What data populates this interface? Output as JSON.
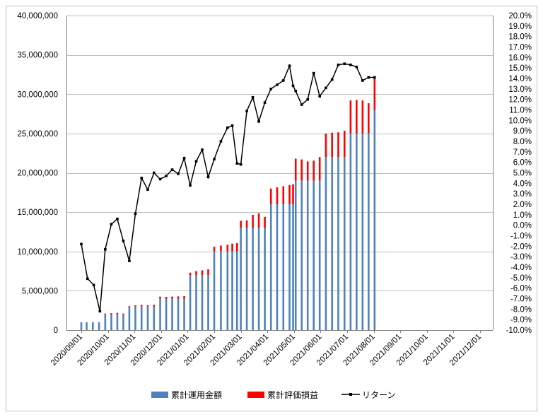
{
  "chart_data": {
    "type": "bar+line",
    "left_axis": {
      "min": 0,
      "max": 40000000,
      "step": 5000000,
      "tick_labels": [
        "0",
        "5,000,000",
        "10,000,000",
        "15,000,000",
        "20,000,000",
        "25,000,000",
        "30,000,000",
        "35,000,000",
        "40,000,000"
      ]
    },
    "right_axis": {
      "min": -10.0,
      "max": 20.0,
      "step": 1.0,
      "tick_labels": [
        "-10.0%",
        "-9.0%",
        "-8.0%",
        "-7.0%",
        "-6.0%",
        "-5.0%",
        "-4.0%",
        "-3.0%",
        "-2.0%",
        "-1.0%",
        "0.0%",
        "1.0%",
        "2.0%",
        "3.0%",
        "4.0%",
        "5.0%",
        "6.0%",
        "7.0%",
        "8.0%",
        "9.0%",
        "10.0%",
        "11.0%",
        "12.0%",
        "13.0%",
        "14.0%",
        "15.0%",
        "16.0%",
        "17.0%",
        "18.0%",
        "19.0%",
        "20.0%"
      ]
    },
    "x_axis": {
      "months": [
        "2020/09/01",
        "2020/10/01",
        "2020/11/01",
        "2020/12/01",
        "2021/01/01",
        "2021/02/01",
        "2021/03/01",
        "2021/04/01",
        "2021/05/01",
        "2021/06/01",
        "2021/07/01",
        "2021/08/01",
        "2021/09/01",
        "2021/10/01",
        "2021/11/01",
        "2021/12/01"
      ]
    },
    "grid": "horizontal",
    "legend_position": "bottom",
    "legend": [
      {
        "label": "累計運用金額",
        "color": "#4f81bd",
        "kind": "bar"
      },
      {
        "label": "累計評価損益",
        "color": "#ff0000",
        "kind": "bar"
      },
      {
        "label": "リターン",
        "color": "#000000",
        "kind": "line-marker"
      }
    ],
    "bars": {
      "dates": [
        "2020/09/01",
        "2020/09/07",
        "2020/09/14",
        "2020/09/21",
        "2020/09/28",
        "2020/10/05",
        "2020/10/12",
        "2020/10/19",
        "2020/10/26",
        "2020/11/02",
        "2020/11/09",
        "2020/11/16",
        "2020/11/23",
        "2020/11/30",
        "2020/12/07",
        "2020/12/14",
        "2020/12/21",
        "2020/12/28",
        "2021/01/04",
        "2021/01/11",
        "2021/01/18",
        "2021/01/25",
        "2021/02/01",
        "2021/02/08",
        "2021/02/15",
        "2021/02/20",
        "2021/02/25",
        "2021/03/01",
        "2021/03/08",
        "2021/03/15",
        "2021/03/22",
        "2021/03/29",
        "2021/04/05",
        "2021/04/12",
        "2021/04/19",
        "2021/04/26",
        "2021/04/30",
        "2021/05/03",
        "2021/05/10",
        "2021/05/17",
        "2021/05/24",
        "2021/05/31",
        "2021/06/07",
        "2021/06/14",
        "2021/06/21",
        "2021/06/28",
        "2021/07/05",
        "2021/07/12",
        "2021/07/19",
        "2021/07/26",
        "2021/08/02"
      ],
      "invested": [
        1000000,
        1000000,
        1000000,
        1000000,
        2000000,
        2000000,
        2000000,
        2000000,
        3000000,
        3000000,
        3000000,
        3000000,
        3000000,
        4000000,
        4000000,
        4000000,
        4000000,
        4000000,
        7000000,
        7000000,
        7000000,
        7000000,
        10000000,
        10000000,
        10000000,
        10000000,
        10000000,
        13000000,
        13000000,
        13000000,
        13000000,
        13000000,
        16000000,
        16000000,
        16000000,
        16000000,
        16000000,
        19000000,
        19000000,
        19000000,
        19000000,
        19000000,
        22000000,
        22000000,
        22000000,
        22000000,
        25000000,
        25000000,
        25000000,
        25000000,
        28000000
      ],
      "unrealized": [
        -80000,
        -50000,
        -60000,
        -90000,
        100000,
        150000,
        180000,
        100000,
        80000,
        150000,
        200000,
        150000,
        200000,
        250000,
        230000,
        260000,
        280000,
        320000,
        300000,
        500000,
        600000,
        720000,
        600000,
        750000,
        850000,
        1000000,
        1050000,
        900000,
        950000,
        1650000,
        1850000,
        1400000,
        2000000,
        2150000,
        2300000,
        2450000,
        2550000,
        2800000,
        2700000,
        2450000,
        2550000,
        3000000,
        3000000,
        3100000,
        3150000,
        3350000,
        4200000,
        4250000,
        4200000,
        3850000,
        4250000
      ]
    },
    "return_line": {
      "dates": [
        "2020/09/01",
        "2020/09/08",
        "2020/09/15",
        "2020/09/22",
        "2020/09/28",
        "2020/10/05",
        "2020/10/12",
        "2020/10/19",
        "2020/10/26",
        "2020/11/02",
        "2020/11/09",
        "2020/11/16",
        "2020/11/23",
        "2020/11/30",
        "2020/12/07",
        "2020/12/14",
        "2020/12/21",
        "2020/12/28",
        "2021/01/04",
        "2021/01/11",
        "2021/01/18",
        "2021/01/25",
        "2021/02/01",
        "2021/02/08",
        "2021/02/15",
        "2021/02/20",
        "2021/02/25",
        "2021/03/01",
        "2021/03/08",
        "2021/03/15",
        "2021/03/22",
        "2021/03/29",
        "2021/04/05",
        "2021/04/12",
        "2021/04/19",
        "2021/04/26",
        "2021/04/30",
        "2021/05/03",
        "2021/05/10",
        "2021/05/17",
        "2021/05/24",
        "2021/05/31",
        "2021/06/07",
        "2021/06/14",
        "2021/06/21",
        "2021/06/28",
        "2021/07/05",
        "2021/07/12",
        "2021/07/19",
        "2021/07/26",
        "2021/08/02"
      ],
      "values": [
        -1.8,
        -5.1,
        -5.7,
        -8.2,
        -2.3,
        0.1,
        0.6,
        -1.5,
        -3.4,
        1.1,
        4.5,
        3.4,
        5.0,
        4.4,
        4.7,
        5.3,
        4.9,
        6.4,
        3.8,
        6.1,
        7.2,
        4.6,
        6.3,
        8.0,
        9.3,
        9.5,
        5.9,
        5.8,
        10.9,
        12.2,
        9.9,
        11.7,
        13.0,
        13.4,
        13.8,
        15.2,
        13.3,
        12.8,
        11.5,
        12.0,
        14.5,
        12.3,
        13.1,
        13.9,
        15.3,
        15.4,
        15.3,
        15.1,
        13.8,
        14.1,
        14.1
      ]
    }
  }
}
